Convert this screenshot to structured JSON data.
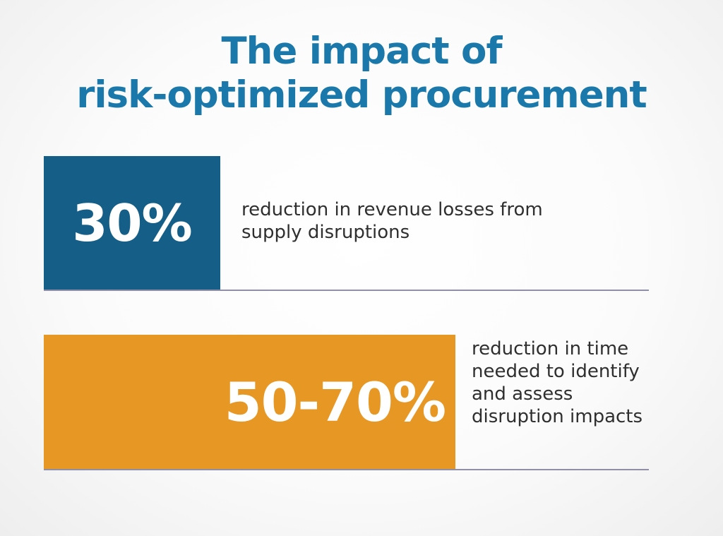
{
  "title": {
    "line1": "The impact of",
    "line2": "risk-optimized procurement"
  },
  "stats": [
    {
      "value": "30%",
      "description": "reduction in revenue losses from supply disruptions",
      "color": "#155e87"
    },
    {
      "value": "50-70%",
      "description": "reduction in time needed to identify and assess disruption impacts",
      "color": "#e79724"
    }
  ],
  "colors": {
    "title": "#1a78ab",
    "divider": "#8f8fa8",
    "text": "#2f2f2f"
  }
}
